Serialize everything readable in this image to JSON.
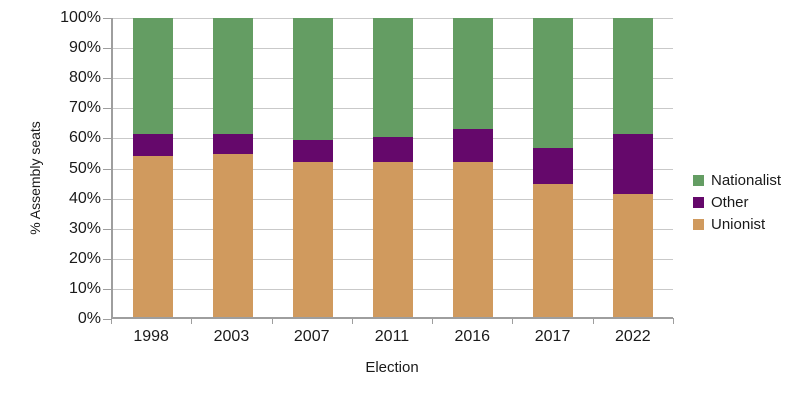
{
  "chart_data": {
    "type": "bar",
    "stacked": true,
    "title": "",
    "xlabel": "Election",
    "ylabel": "% Assembly seats",
    "categories": [
      "1998",
      "2003",
      "2007",
      "2011",
      "2016",
      "2017",
      "2022"
    ],
    "series": [
      {
        "name": "Unionist",
        "color": "#d09a5e",
        "values": [
          53.7,
          54.6,
          51.9,
          51.9,
          51.9,
          44.4,
          41.1
        ]
      },
      {
        "name": "Other",
        "color": "#65086b",
        "values": [
          7.4,
          6.5,
          7.4,
          8.3,
          11.1,
          12.2,
          20.0
        ]
      },
      {
        "name": "Nationalist",
        "color": "#649d63",
        "values": [
          38.9,
          38.9,
          40.7,
          39.8,
          37.0,
          43.4,
          38.9
        ]
      }
    ],
    "ylim": [
      0,
      100
    ],
    "ytick_step": 10,
    "yticks": [
      "0%",
      "10%",
      "20%",
      "30%",
      "40%",
      "50%",
      "60%",
      "70%",
      "80%",
      "90%",
      "100%"
    ],
    "grid": true,
    "legend_position": "right",
    "legend": {
      "items": [
        {
          "label": "Nationalist",
          "color": "#649d63"
        },
        {
          "label": "Other",
          "color": "#65086b"
        },
        {
          "label": "Unionist",
          "color": "#d09a5e"
        }
      ]
    },
    "axis_color": "#9e9e9e",
    "gridline_color": "#c9c9c9",
    "text_color": "#1a1a1a"
  }
}
